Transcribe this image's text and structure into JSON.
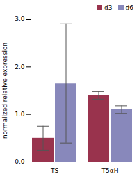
{
  "chart_data": {
    "type": "bar",
    "categories": [
      "TS",
      "T5αH"
    ],
    "series": [
      {
        "name": "d3",
        "color": "#99334d",
        "values": [
          0.5,
          1.4
        ],
        "errors": [
          0.25,
          0.08
        ]
      },
      {
        "name": "d6",
        "color": "#8888bb",
        "values": [
          1.65,
          1.1
        ],
        "errors": [
          1.25,
          0.08
        ]
      }
    ],
    "ylabel": "normalized relative expression",
    "ylim": [
      0,
      3.0
    ],
    "yticks": [
      {
        "value": 0.0,
        "label": "0.0"
      },
      {
        "value": 1.0,
        "label": "1.0"
      },
      {
        "value": 2.0,
        "label": "2.0"
      },
      {
        "value": 3.0,
        "label": "3.0"
      }
    ],
    "legend": "upper right"
  }
}
